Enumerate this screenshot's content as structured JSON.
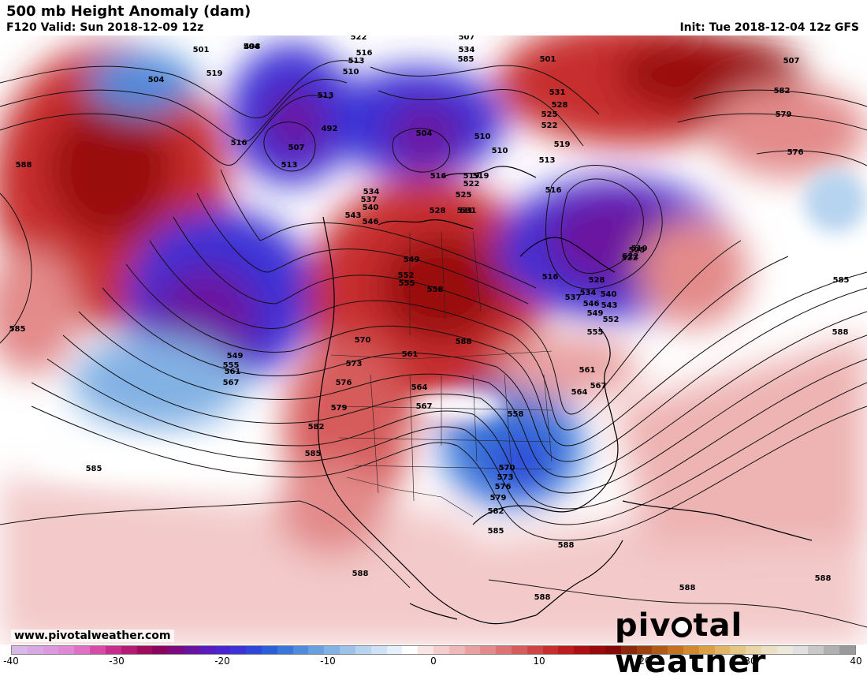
{
  "header": {
    "title": "500 mb Height Anomaly (dam)",
    "valid": "F120 Valid: Sun 2018-12-09 12z",
    "init": "Init: Tue 2018-12-04 12z GFS"
  },
  "footer": {
    "url": "www.pivotalweather.com",
    "logo_part1": "piv",
    "logo_part2": "tal weather"
  },
  "colorbar": {
    "min": -40,
    "max": 40,
    "tick_labels": [
      "-40",
      "-30",
      "-20",
      "-10",
      "0",
      "10",
      "20",
      "30",
      "40"
    ],
    "colors": [
      "#d9b8e8",
      "#d9a8e4",
      "#dc98e0",
      "#e088d8",
      "#e26fc6",
      "#d84aa8",
      "#c62e8d",
      "#b21a73",
      "#9c0b5c",
      "#8a055e",
      "#7a0a7e",
      "#6a13a0",
      "#5a1bbd",
      "#4a25cf",
      "#3b33d6",
      "#2e47d9",
      "#2a5fd8",
      "#3a76d8",
      "#4f8bdc",
      "#689fe0",
      "#82b1e4",
      "#9cc2e9",
      "#b6d3ef",
      "#cfe2f5",
      "#e6f0fa",
      "#ffffff",
      "#fbe4e4",
      "#f5cdcd",
      "#efb7b7",
      "#e9a0a0",
      "#e38a8a",
      "#dd7373",
      "#d65c5c",
      "#cf4545",
      "#c72f2f",
      "#bd1c1c",
      "#ad1010",
      "#9a0a0a",
      "#870808",
      "#8a2a0a",
      "#9b4210",
      "#b05a18",
      "#c47222",
      "#d28a30",
      "#dca046",
      "#e2b463",
      "#e6c684",
      "#e9d5a6",
      "#ebe0c4",
      "#ece8dc",
      "#e0e0e0",
      "#c8c8c8",
      "#b0b0b0",
      "#9a9a9a"
    ]
  },
  "contour_labels": [
    "522",
    "507",
    "516",
    "513",
    "510",
    "501",
    "498",
    "534",
    "585",
    "501",
    "507",
    "504",
    "519",
    "504",
    "513",
    "507",
    "492",
    "504",
    "510",
    "513",
    "582",
    "531",
    "528",
    "525",
    "522",
    "519",
    "579",
    "576",
    "516",
    "588",
    "510",
    "519",
    "516",
    "513",
    "516",
    "534",
    "537",
    "540",
    "543",
    "546",
    "528",
    "531",
    "525",
    "522",
    "519",
    "525",
    "522",
    "519",
    "522",
    "528",
    "549",
    "552",
    "555",
    "558",
    "531",
    "516",
    "537",
    "534",
    "540",
    "546",
    "543",
    "549",
    "552",
    "555",
    "585",
    "585",
    "570",
    "573",
    "576",
    "579",
    "561",
    "564",
    "567",
    "549",
    "555",
    "561",
    "567",
    "561",
    "564",
    "567",
    "558",
    "588",
    "582",
    "585",
    "570",
    "573",
    "576",
    "579",
    "582",
    "585",
    "585",
    "588",
    "588",
    "588",
    "588",
    "588",
    "588"
  ],
  "map_colors": {
    "background": "#ffffff",
    "deep_red": "#9a0a0a",
    "red": "#c72f2f",
    "pink": "#f0c0c0",
    "deep_blue": "#3b33d6",
    "purple": "#6a13a0",
    "light_blue": "#b6d3ef"
  }
}
